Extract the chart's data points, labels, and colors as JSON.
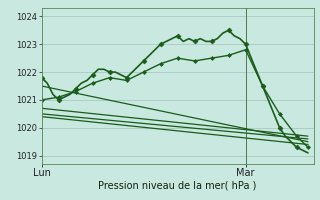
{
  "background_color": "#c8e8e0",
  "plot_bg_color": "#c8e8e0",
  "grid_color": "#a8c8c0",
  "line_color": "#1a5c1a",
  "xlabel": "Pression niveau de la mer( hPa )",
  "ylim": [
    1018.7,
    1024.3
  ],
  "yticks": [
    1019,
    1020,
    1021,
    1022,
    1023,
    1024
  ],
  "xlim": [
    0,
    48
  ],
  "lun_x": 0,
  "mar_x": 36,
  "vline_x": 36,
  "series": [
    {
      "x": [
        0,
        1,
        2,
        3,
        4,
        5,
        6,
        7,
        8,
        9,
        10,
        11,
        12,
        13,
        14,
        15,
        16,
        17,
        18,
        19,
        20,
        21,
        22,
        23,
        24,
        25,
        26,
        27,
        28,
        29,
        30,
        31,
        32,
        33,
        34,
        35,
        36,
        37,
        38,
        39,
        40,
        41,
        42,
        43,
        44,
        45,
        46,
        47
      ],
      "y": [
        1021.8,
        1021.6,
        1021.2,
        1021.0,
        1021.1,
        1021.2,
        1021.4,
        1021.6,
        1021.7,
        1021.9,
        1022.1,
        1022.1,
        1022.0,
        1022.0,
        1021.9,
        1021.8,
        1022.0,
        1022.2,
        1022.4,
        1022.6,
        1022.8,
        1023.0,
        1023.1,
        1023.2,
        1023.3,
        1023.1,
        1023.2,
        1023.1,
        1023.2,
        1023.1,
        1023.1,
        1023.2,
        1023.4,
        1023.5,
        1023.3,
        1023.2,
        1023.0,
        1022.5,
        1022.0,
        1021.5,
        1021.0,
        1020.5,
        1020.0,
        1019.7,
        1019.5,
        1019.3,
        1019.2,
        1019.1
      ],
      "marker": "D",
      "markersize": 2.5,
      "markevery": 3,
      "linewidth": 1.2
    },
    {
      "x": [
        0,
        3,
        6,
        9,
        12,
        15,
        18,
        21,
        24,
        27,
        30,
        33,
        36,
        39,
        42,
        45,
        47
      ],
      "y": [
        1021.0,
        1021.1,
        1021.3,
        1021.6,
        1021.8,
        1021.7,
        1022.0,
        1022.3,
        1022.5,
        1022.4,
        1022.5,
        1022.6,
        1022.8,
        1021.5,
        1020.5,
        1019.7,
        1019.3
      ],
      "marker": "D",
      "markersize": 2.0,
      "markevery": 1,
      "linewidth": 1.0
    },
    {
      "x": [
        0,
        47
      ],
      "y": [
        1021.5,
        1019.5
      ],
      "marker": null,
      "linewidth": 0.9
    },
    {
      "x": [
        0,
        47
      ],
      "y": [
        1020.7,
        1019.7
      ],
      "marker": null,
      "linewidth": 0.9
    },
    {
      "x": [
        0,
        47
      ],
      "y": [
        1020.5,
        1019.6
      ],
      "marker": null,
      "linewidth": 0.9
    },
    {
      "x": [
        0,
        47
      ],
      "y": [
        1020.4,
        1019.4
      ],
      "marker": null,
      "linewidth": 0.9
    }
  ]
}
